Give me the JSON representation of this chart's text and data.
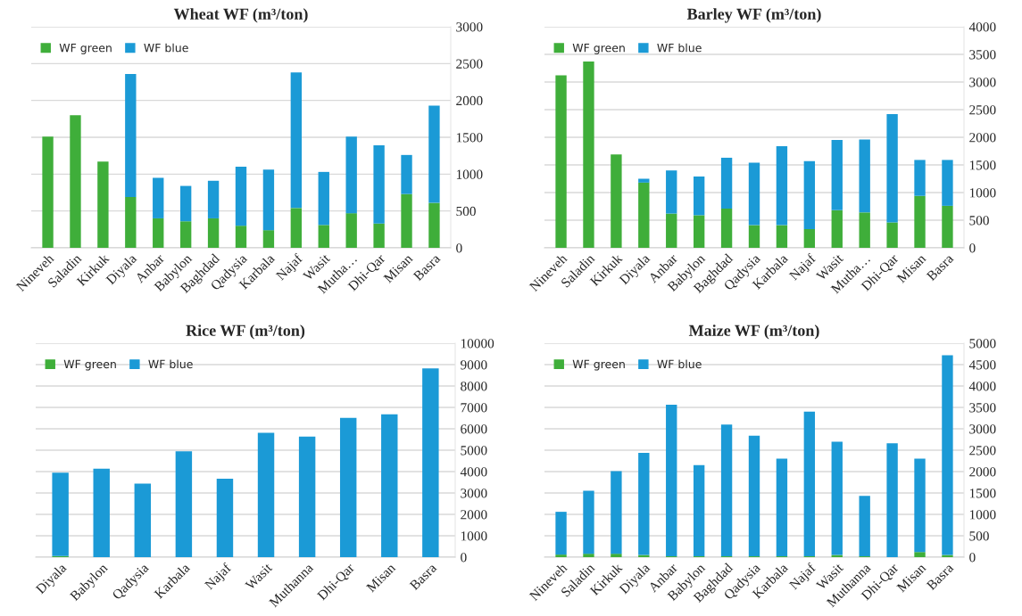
{
  "chart_data": [
    {
      "type": "bar",
      "title": "Wheat WF (m³/ton)",
      "stacked": true,
      "legend": "top left",
      "grid": "y",
      "categories": [
        "Nineveh",
        "Saladin",
        "Kirkuk",
        "Diyala",
        "Anbar",
        "Babylon",
        "Baghdad",
        "Qadysia",
        "Karbala",
        "Najaf",
        "Wasit",
        "Mutha…",
        "Dhi-Qar",
        "Misan",
        "Basra"
      ],
      "series": [
        {
          "name": "WF green",
          "color": "#3fae3a",
          "values": [
            1510,
            1800,
            1170,
            690,
            400,
            360,
            400,
            300,
            240,
            540,
            310,
            470,
            330,
            730,
            610
          ]
        },
        {
          "name": "WF blue",
          "color": "#1b9ad6",
          "values": [
            null,
            null,
            null,
            1670,
            550,
            480,
            510,
            800,
            820,
            1840,
            720,
            1040,
            1060,
            530,
            1320
          ]
        }
      ],
      "ylim": [
        0,
        3000
      ],
      "yticks": [
        0,
        500,
        1000,
        1500,
        2000,
        2500,
        3000
      ]
    },
    {
      "type": "bar",
      "title": "Barley WF (m³/ton)",
      "stacked": true,
      "legend": "top left",
      "grid": "y",
      "categories": [
        "Nineveh",
        "Saladin",
        "Kirkuk",
        "Diyala",
        "Anbar",
        "Babylon",
        "Baghdad",
        "Qadysia",
        "Karbala",
        "Najaf",
        "Wasit",
        "Mutha…",
        "Dhi-Qar",
        "Misan",
        "Basra"
      ],
      "series": [
        {
          "name": "WF green",
          "color": "#3fae3a",
          "values": [
            3120,
            3370,
            1690,
            1180,
            620,
            590,
            710,
            410,
            410,
            340,
            680,
            640,
            460,
            940,
            760
          ]
        },
        {
          "name": "WF blue",
          "color": "#1b9ad6",
          "values": [
            null,
            null,
            null,
            70,
            780,
            700,
            920,
            1130,
            1430,
            1230,
            1270,
            1320,
            1960,
            650,
            830
          ]
        }
      ],
      "ylim": [
        0,
        4000
      ],
      "yticks": [
        0,
        500,
        1000,
        1500,
        2000,
        2500,
        3000,
        3500,
        4000
      ]
    },
    {
      "type": "bar",
      "title": "Rice WF (m³/ton)",
      "stacked": true,
      "legend": "top left",
      "grid": "y",
      "categories": [
        "Diyala",
        "Babylon",
        "Qadysia",
        "Karbala",
        "Najaf",
        "Wasit",
        "Muthanna",
        "Dhi-Qar",
        "Misan",
        "Basra"
      ],
      "series": [
        {
          "name": "WF green",
          "color": "#3fae3a",
          "values": [
            50,
            null,
            null,
            null,
            null,
            null,
            null,
            null,
            null,
            null
          ]
        },
        {
          "name": "WF blue",
          "color": "#1b9ad6",
          "values": [
            3900,
            4140,
            3440,
            4950,
            3670,
            5810,
            5640,
            6510,
            6680,
            8820
          ]
        }
      ],
      "ylim": [
        0,
        10000
      ],
      "yticks": [
        0,
        1000,
        2000,
        3000,
        4000,
        5000,
        6000,
        7000,
        8000,
        9000,
        10000
      ]
    },
    {
      "type": "bar",
      "title": "Maize WF (m³/ton)",
      "stacked": true,
      "legend": "top left",
      "grid": "y",
      "categories": [
        "Nineveh",
        "Saladin",
        "Kirkuk",
        "Diyala",
        "Anbar",
        "Babylon",
        "Baghdad",
        "Qadysia",
        "Karbala",
        "Najaf",
        "Wasit",
        "Muthanna",
        "Dhi-Qar",
        "Misan",
        "Basra"
      ],
      "series": [
        {
          "name": "WF green",
          "color": "#3fae3a",
          "values": [
            60,
            80,
            80,
            50,
            20,
            20,
            20,
            20,
            20,
            20,
            50,
            20,
            null,
            120,
            50
          ]
        },
        {
          "name": "WF blue",
          "color": "#1b9ad6",
          "values": [
            1000,
            1470,
            1930,
            2390,
            3540,
            2130,
            3080,
            2820,
            2280,
            3380,
            2650,
            1410,
            2660,
            2180,
            4670
          ]
        }
      ],
      "ylim": [
        0,
        5000
      ],
      "yticks": [
        0,
        500,
        1000,
        1500,
        2000,
        2500,
        3000,
        3500,
        4000,
        4500,
        5000
      ]
    }
  ]
}
